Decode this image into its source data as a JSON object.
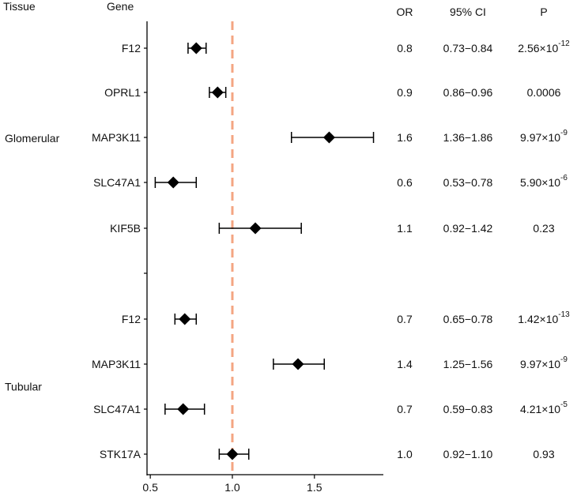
{
  "chart_data": {
    "type": "forest",
    "headers": {
      "tissue": "Tissue",
      "gene": "Gene",
      "or": "OR",
      "ci": "95% CI",
      "p": "P"
    },
    "reference_line": 1.0,
    "xlim": [
      0.48,
      1.92
    ],
    "xticks": [
      {
        "value": 0.5,
        "label": "0.5"
      },
      {
        "value": 1.0,
        "label": "1.0"
      },
      {
        "value": 1.5,
        "label": "1.5"
      }
    ],
    "groups": [
      {
        "tissue": "Glomerular",
        "rows": [
          {
            "gene": "F12",
            "estimate": 0.78,
            "lower": 0.73,
            "upper": 0.84,
            "or": "0.8",
            "ci": "0.73−0.84",
            "p_base": "2.56×10",
            "p_exp": "-12"
          },
          {
            "gene": "OPRL1",
            "estimate": 0.91,
            "lower": 0.86,
            "upper": 0.96,
            "or": "0.9",
            "ci": "0.86−0.96",
            "p_base": "0.0006",
            "p_exp": ""
          },
          {
            "gene": "MAP3K11",
            "estimate": 1.59,
            "lower": 1.36,
            "upper": 1.86,
            "or": "1.6",
            "ci": "1.36−1.86",
            "p_base": "9.97×10",
            "p_exp": "-9"
          },
          {
            "gene": "SLC47A1",
            "estimate": 0.64,
            "lower": 0.53,
            "upper": 0.78,
            "or": "0.6",
            "ci": "0.53−0.78",
            "p_base": "5.90×10",
            "p_exp": "-6"
          },
          {
            "gene": "KIF5B",
            "estimate": 1.14,
            "lower": 0.92,
            "upper": 1.42,
            "or": "1.1",
            "ci": "0.92−1.42",
            "p_base": "0.23",
            "p_exp": ""
          }
        ]
      },
      {
        "tissue": "Tubular",
        "rows": [
          {
            "gene": "F12",
            "estimate": 0.71,
            "lower": 0.65,
            "upper": 0.78,
            "or": "0.7",
            "ci": "0.65−0.78",
            "p_base": "1.42×10",
            "p_exp": "-13"
          },
          {
            "gene": "MAP3K11",
            "estimate": 1.4,
            "lower": 1.25,
            "upper": 1.56,
            "or": "1.4",
            "ci": "1.25−1.56",
            "p_base": "9.97×10",
            "p_exp": "-9"
          },
          {
            "gene": "SLC47A1",
            "estimate": 0.7,
            "lower": 0.59,
            "upper": 0.83,
            "or": "0.7",
            "ci": "0.59−0.83",
            "p_base": "4.21×10",
            "p_exp": "-5"
          },
          {
            "gene": "STK17A",
            "estimate": 1.0,
            "lower": 0.92,
            "upper": 1.1,
            "or": "1.0",
            "ci": "0.92−1.10",
            "p_base": "0.93",
            "p_exp": ""
          }
        ]
      }
    ],
    "colors": {
      "reference_line": "#f4a582",
      "marker": "#000000",
      "axis": "#000000"
    }
  }
}
